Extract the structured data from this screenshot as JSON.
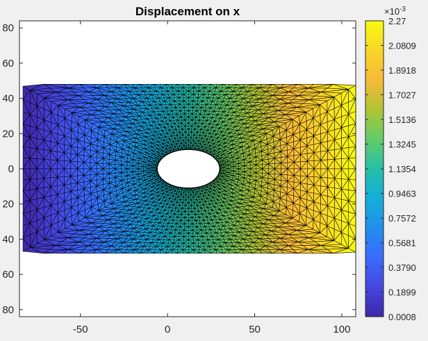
{
  "chart_data": {
    "type": "heatmap",
    "title": "Displacement on x",
    "xlabel": "",
    "ylabel": "",
    "xlim": [
      -85,
      108
    ],
    "ylim": [
      -84,
      84
    ],
    "xticks": [
      -50,
      0,
      50,
      100
    ],
    "xtick_labels": [
      "-50",
      "0",
      "50",
      "100"
    ],
    "yticks": [
      80,
      60,
      40,
      20,
      0,
      -20,
      -40,
      -60,
      -80
    ],
    "ytick_labels": [
      "80",
      "60",
      "40",
      "20",
      "0",
      "20",
      "40",
      "60",
      "80"
    ],
    "domain": {
      "x_range": [
        -83,
        108
      ],
      "y_range": [
        -48,
        48
      ],
      "hole_center": [
        12,
        0
      ],
      "hole_radii": [
        18,
        11
      ]
    },
    "colorbar": {
      "colormap": "parula",
      "range": [
        0.0008,
        2.27
      ],
      "exponent_label": "×10",
      "exponent_value": "-3",
      "tick_labels": [
        "2.27",
        "2.0809",
        "1.8918",
        "1.7027",
        "1.5136",
        "1.3245",
        "1.1354",
        "0.9463",
        "0.7572",
        "0.5681",
        "0.3790",
        "0.1899",
        "0.0008"
      ]
    },
    "grid": false
  }
}
